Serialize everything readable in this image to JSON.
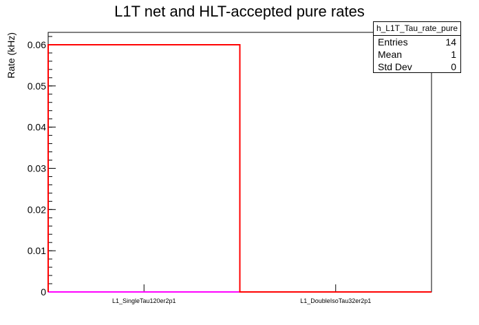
{
  "chart_data": {
    "type": "bar",
    "title": "L1T net and HLT-accepted pure rates",
    "ylabel": "Rate (kHz)",
    "xlabel": "",
    "categories": [
      "L1_SingleTau120er2p1",
      "L1_DoubleIsoTau32er2p1"
    ],
    "series": [
      {
        "color": "#ff0000",
        "values": [
          0.06,
          0
        ]
      },
      {
        "color": "#ff00ff",
        "values": [
          0,
          0
        ]
      }
    ],
    "ylim": [
      0,
      0.063
    ],
    "yticks": [
      0,
      0.01,
      0.02,
      0.03,
      0.04,
      0.05,
      0.06
    ],
    "ytick_labels": [
      "0",
      "0.01",
      "0.02",
      "0.03",
      "0.04",
      "0.05",
      "0.06"
    ],
    "grid": false,
    "legend": "none",
    "stats_box": {
      "name": "h_L1T_Tau_rate_pure",
      "placement": "top-right",
      "entries_label": "Entries",
      "entries": "14",
      "mean_label": "Mean",
      "mean": "1",
      "stddev_label": "Std Dev",
      "stddev": "0"
    }
  }
}
